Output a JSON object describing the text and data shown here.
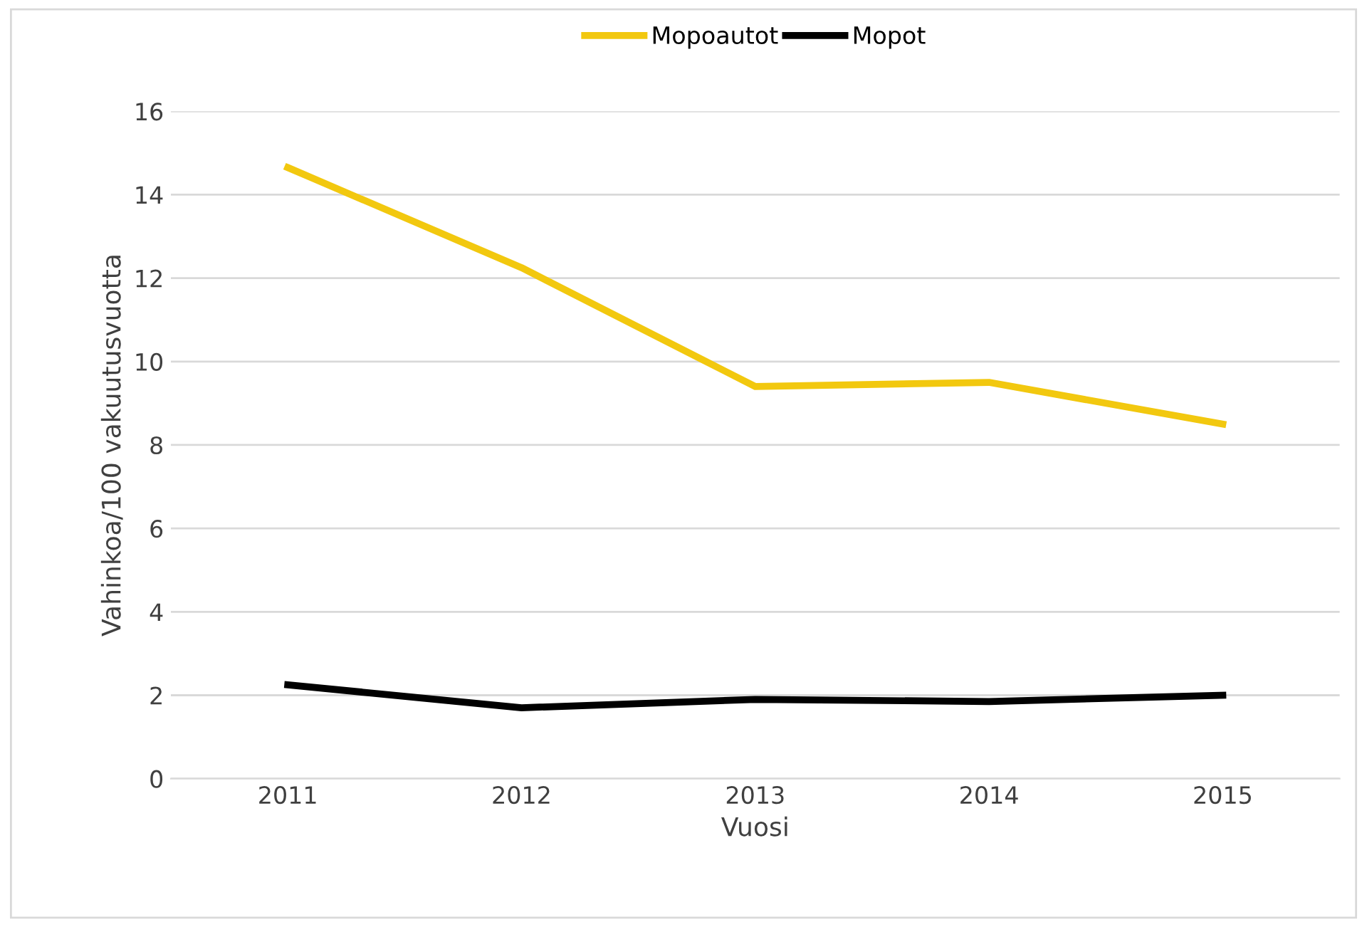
{
  "chart_data": {
    "type": "line",
    "xlabel": "Vuosi",
    "ylabel": "Vahinkoa/100 vakuutusvuotta",
    "categories": [
      "2011",
      "2012",
      "2013",
      "2014",
      "2015"
    ],
    "series": [
      {
        "name": "Mopoautot",
        "color": "#f2c80f",
        "values": [
          14.65,
          12.25,
          9.4,
          9.5,
          8.5
        ]
      },
      {
        "name": "Mopot",
        "color": "#000000",
        "values": [
          2.25,
          1.7,
          1.9,
          1.85,
          2.0
        ]
      }
    ],
    "ylim": [
      0,
      16
    ],
    "yticks": [
      0,
      2,
      4,
      6,
      8,
      10,
      12,
      14,
      16
    ],
    "grid": "y",
    "legend": "top",
    "marker": "none",
    "line_style": "solid"
  }
}
